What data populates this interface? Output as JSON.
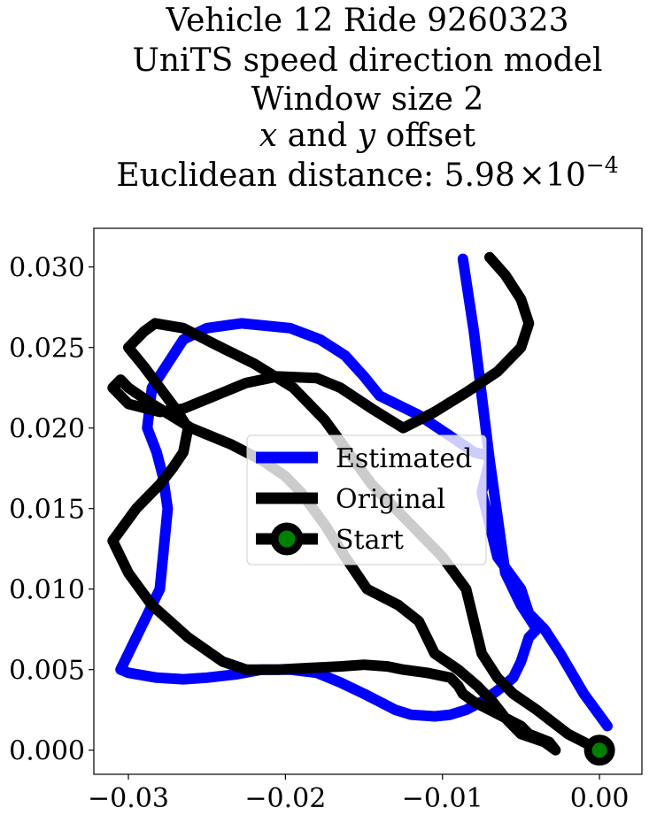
{
  "chart_data": {
    "type": "line",
    "title_lines": [
      "Vehicle 12 Ride 9260323",
      "UniTS speed direction model",
      "Window size 2"
    ],
    "title_offset_line": {
      "x": "x",
      "mid": " and ",
      "y": "y",
      "tail": " offset"
    },
    "title_distance": {
      "prefix": "Euclidean distance: ",
      "mantissa": "5.98",
      "times": "×",
      "base": "10",
      "exponent": "−4"
    },
    "xlim": [
      -0.0322,
      0.0027
    ],
    "ylim": [
      -0.0015,
      0.0324
    ],
    "x_ticks": [
      -0.03,
      -0.02,
      -0.01,
      0.0
    ],
    "x_tick_labels": [
      "−0.03",
      "−0.02",
      "−0.01",
      "0.00"
    ],
    "y_ticks": [
      0.0,
      0.005,
      0.01,
      0.015,
      0.02,
      0.025,
      0.03
    ],
    "y_tick_labels": [
      "0.000",
      "0.005",
      "0.010",
      "0.015",
      "0.020",
      "0.025",
      "0.030"
    ],
    "grid": false,
    "legend_position": "center",
    "series": [
      {
        "name": "Estimated",
        "color": "#0000ff",
        "x": [
          0.0005,
          -0.001,
          -0.0025,
          -0.0035,
          -0.0045,
          -0.005,
          -0.0065,
          -0.007,
          -0.0075,
          -0.007,
          -0.0072,
          -0.008,
          -0.0095,
          -0.0115,
          -0.014,
          -0.015,
          -0.0162,
          -0.0178,
          -0.0197,
          -0.0228,
          -0.025,
          -0.0265,
          -0.0275,
          -0.0285,
          -0.0288,
          -0.0282,
          -0.0278,
          -0.0275,
          -0.028,
          -0.0295,
          -0.0305,
          -0.03,
          -0.0282,
          -0.0265,
          -0.025,
          -0.0232,
          -0.0215,
          -0.0197,
          -0.018,
          -0.0165,
          -0.015,
          -0.014,
          -0.013,
          -0.012,
          -0.0105,
          -0.0095,
          -0.0085,
          -0.0075,
          -0.0065,
          -0.0055,
          -0.005,
          -0.0045,
          -0.004,
          -0.005,
          -0.006,
          -0.007,
          -0.008,
          -0.0087
        ],
        "y": [
          0.0015,
          0.0035,
          0.006,
          0.0075,
          0.0085,
          0.01,
          0.012,
          0.014,
          0.016,
          0.018,
          0.0183,
          0.0185,
          0.0195,
          0.0208,
          0.022,
          0.0232,
          0.0245,
          0.0255,
          0.0262,
          0.0265,
          0.0262,
          0.0255,
          0.024,
          0.0225,
          0.02,
          0.0185,
          0.017,
          0.015,
          0.01,
          0.007,
          0.005,
          0.0048,
          0.0045,
          0.0044,
          0.0045,
          0.0047,
          0.005,
          0.005,
          0.0048,
          0.0042,
          0.0035,
          0.003,
          0.0025,
          0.0022,
          0.0021,
          0.0022,
          0.0025,
          0.003,
          0.0037,
          0.0045,
          0.0055,
          0.007,
          0.0075,
          0.009,
          0.011,
          0.018,
          0.026,
          0.0305
        ]
      },
      {
        "name": "Original",
        "color": "#000000",
        "x": [
          0.0,
          -0.002,
          -0.004,
          -0.0055,
          -0.0065,
          -0.0075,
          -0.008,
          -0.0085,
          -0.01,
          -0.0125,
          -0.0145,
          -0.016,
          -0.0175,
          -0.0195,
          -0.022,
          -0.0245,
          -0.0265,
          -0.0283,
          -0.029,
          -0.03,
          -0.029,
          -0.028,
          -0.027,
          -0.0262,
          -0.0265,
          -0.0272,
          -0.028,
          -0.0295,
          -0.031,
          -0.03,
          -0.0285,
          -0.0262,
          -0.024,
          -0.0225,
          -0.0205,
          -0.0185,
          -0.0165,
          -0.015,
          -0.0135,
          -0.0125,
          -0.011,
          -0.0095,
          -0.009,
          -0.0087,
          -0.008,
          -0.007,
          -0.006,
          -0.005,
          -0.0045,
          -0.0032,
          -0.0028,
          -0.0035,
          -0.005,
          -0.006,
          -0.0068,
          -0.0078,
          -0.009,
          -0.0105,
          -0.011,
          -0.0115,
          -0.0128,
          -0.0148,
          -0.0162,
          -0.0175,
          -0.019,
          -0.02,
          -0.0215,
          -0.0235,
          -0.026,
          -0.0285,
          -0.03,
          -0.0305,
          -0.031,
          -0.03,
          -0.028,
          -0.0265,
          -0.0245,
          -0.0225,
          -0.0205,
          -0.018,
          -0.0165,
          -0.0145,
          -0.0125,
          -0.0105,
          -0.0085,
          -0.0065,
          -0.005,
          -0.0045,
          -0.005,
          -0.006,
          -0.007
        ],
        "y": [
          0.0,
          0.001,
          0.0025,
          0.0035,
          0.0045,
          0.006,
          0.008,
          0.01,
          0.012,
          0.0145,
          0.0165,
          0.0185,
          0.0205,
          0.0225,
          0.024,
          0.0252,
          0.0262,
          0.0265,
          0.026,
          0.025,
          0.0238,
          0.0225,
          0.0212,
          0.02,
          0.0185,
          0.0175,
          0.0165,
          0.015,
          0.013,
          0.011,
          0.009,
          0.007,
          0.0055,
          0.005,
          0.005,
          0.0051,
          0.0052,
          0.0053,
          0.0052,
          0.005,
          0.0048,
          0.0045,
          0.004,
          0.0035,
          0.003,
          0.0025,
          0.002,
          0.0015,
          0.001,
          0.0005,
          0.0,
          0.0005,
          0.001,
          0.002,
          0.003,
          0.004,
          0.005,
          0.006,
          0.007,
          0.008,
          0.009,
          0.01,
          0.012,
          0.014,
          0.016,
          0.017,
          0.018,
          0.019,
          0.02,
          0.0215,
          0.0225,
          0.023,
          0.0225,
          0.0215,
          0.021,
          0.0212,
          0.022,
          0.0228,
          0.0232,
          0.0231,
          0.0225,
          0.0212,
          0.02,
          0.021,
          0.0222,
          0.0235,
          0.025,
          0.0265,
          0.028,
          0.0295,
          0.0306
        ]
      }
    ],
    "start": {
      "name": "Start",
      "x": 0.0,
      "y": 0.0,
      "marker_fill": "#008000",
      "marker_edge": "#000000"
    }
  }
}
